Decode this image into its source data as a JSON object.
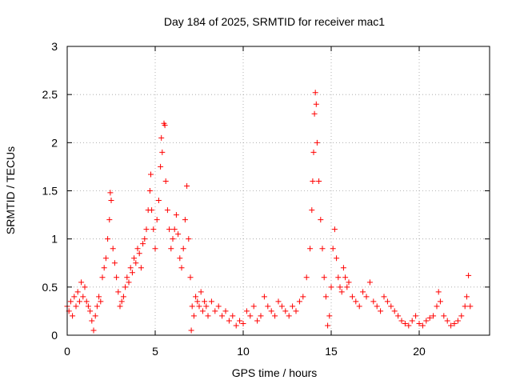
{
  "chart_data": {
    "type": "scatter",
    "title": "Day 184 of 2025, SRMTID for receiver mac1",
    "xlabel": "GPS time / hours",
    "ylabel": "SRMTID / TECUs",
    "xlim": [
      0,
      24
    ],
    "ylim": [
      0,
      3
    ],
    "xticks": [
      0,
      5,
      10,
      15,
      20
    ],
    "xtick_labels": [
      "0",
      "5",
      "10",
      "15",
      "20"
    ],
    "yticks": [
      0,
      0.5,
      1,
      1.5,
      2,
      2.5,
      3
    ],
    "ytick_labels": [
      "0",
      "0.5",
      "1",
      "1.5",
      "2",
      "2.5",
      "3"
    ],
    "grid": true,
    "marker": "+",
    "series": [
      {
        "name": "SRMTID",
        "color": "#ff0000",
        "points": [
          [
            0.0,
            0.3
          ],
          [
            0.1,
            0.25
          ],
          [
            0.2,
            0.35
          ],
          [
            0.3,
            0.2
          ],
          [
            0.4,
            0.4
          ],
          [
            0.5,
            0.3
          ],
          [
            0.6,
            0.45
          ],
          [
            0.7,
            0.35
          ],
          [
            0.8,
            0.55
          ],
          [
            0.9,
            0.4
          ],
          [
            1.0,
            0.5
          ],
          [
            1.1,
            0.35
          ],
          [
            1.2,
            0.3
          ],
          [
            1.3,
            0.25
          ],
          [
            1.4,
            0.15
          ],
          [
            1.5,
            0.05
          ],
          [
            1.6,
            0.2
          ],
          [
            1.7,
            0.3
          ],
          [
            1.8,
            0.4
          ],
          [
            1.9,
            0.35
          ],
          [
            2.0,
            0.6
          ],
          [
            2.1,
            0.7
          ],
          [
            2.2,
            0.8
          ],
          [
            2.3,
            1.0
          ],
          [
            2.4,
            1.2
          ],
          [
            2.45,
            1.48
          ],
          [
            2.5,
            1.4
          ],
          [
            2.6,
            0.9
          ],
          [
            2.7,
            0.75
          ],
          [
            2.8,
            0.6
          ],
          [
            2.9,
            0.45
          ],
          [
            3.0,
            0.3
          ],
          [
            3.1,
            0.35
          ],
          [
            3.2,
            0.4
          ],
          [
            3.3,
            0.5
          ],
          [
            3.4,
            0.6
          ],
          [
            3.5,
            0.55
          ],
          [
            3.6,
            0.7
          ],
          [
            3.7,
            0.65
          ],
          [
            3.8,
            0.8
          ],
          [
            3.9,
            0.75
          ],
          [
            4.0,
            0.9
          ],
          [
            4.1,
            0.85
          ],
          [
            4.2,
            0.7
          ],
          [
            4.3,
            0.95
          ],
          [
            4.4,
            1.0
          ],
          [
            4.5,
            1.1
          ],
          [
            4.6,
            1.3
          ],
          [
            4.7,
            1.5
          ],
          [
            4.75,
            1.67
          ],
          [
            4.8,
            1.3
          ],
          [
            4.9,
            1.1
          ],
          [
            5.0,
            0.9
          ],
          [
            5.1,
            1.2
          ],
          [
            5.2,
            1.4
          ],
          [
            5.3,
            1.75
          ],
          [
            5.35,
            2.05
          ],
          [
            5.4,
            1.9
          ],
          [
            5.5,
            2.2
          ],
          [
            5.55,
            2.18
          ],
          [
            5.6,
            1.6
          ],
          [
            5.7,
            1.3
          ],
          [
            5.8,
            1.1
          ],
          [
            5.9,
            0.9
          ],
          [
            6.0,
            1.0
          ],
          [
            6.1,
            1.1
          ],
          [
            6.2,
            1.25
          ],
          [
            6.3,
            1.05
          ],
          [
            6.4,
            0.8
          ],
          [
            6.5,
            0.7
          ],
          [
            6.6,
            0.9
          ],
          [
            6.7,
            1.2
          ],
          [
            6.8,
            1.55
          ],
          [
            6.9,
            1.0
          ],
          [
            7.0,
            0.6
          ],
          [
            7.05,
            0.05
          ],
          [
            7.1,
            0.3
          ],
          [
            7.2,
            0.2
          ],
          [
            7.3,
            0.4
          ],
          [
            7.4,
            0.35
          ],
          [
            7.5,
            0.3
          ],
          [
            7.6,
            0.45
          ],
          [
            7.7,
            0.25
          ],
          [
            7.8,
            0.35
          ],
          [
            7.9,
            0.3
          ],
          [
            8.0,
            0.2
          ],
          [
            8.2,
            0.35
          ],
          [
            8.4,
            0.25
          ],
          [
            8.6,
            0.3
          ],
          [
            8.8,
            0.2
          ],
          [
            9.0,
            0.25
          ],
          [
            9.2,
            0.15
          ],
          [
            9.4,
            0.2
          ],
          [
            9.6,
            0.1
          ],
          [
            9.8,
            0.15
          ],
          [
            10.0,
            0.12
          ],
          [
            10.2,
            0.25
          ],
          [
            10.4,
            0.2
          ],
          [
            10.6,
            0.3
          ],
          [
            10.8,
            0.15
          ],
          [
            11.0,
            0.2
          ],
          [
            11.2,
            0.4
          ],
          [
            11.4,
            0.3
          ],
          [
            11.6,
            0.25
          ],
          [
            11.8,
            0.2
          ],
          [
            12.0,
            0.35
          ],
          [
            12.2,
            0.3
          ],
          [
            12.4,
            0.25
          ],
          [
            12.6,
            0.2
          ],
          [
            12.8,
            0.3
          ],
          [
            13.0,
            0.25
          ],
          [
            13.2,
            0.35
          ],
          [
            13.4,
            0.4
          ],
          [
            13.6,
            0.6
          ],
          [
            13.8,
            0.9
          ],
          [
            13.9,
            1.3
          ],
          [
            13.95,
            1.6
          ],
          [
            14.0,
            1.9
          ],
          [
            14.05,
            2.3
          ],
          [
            14.1,
            2.52
          ],
          [
            14.15,
            2.4
          ],
          [
            14.2,
            2.0
          ],
          [
            14.3,
            1.6
          ],
          [
            14.4,
            1.2
          ],
          [
            14.5,
            0.9
          ],
          [
            14.6,
            0.6
          ],
          [
            14.7,
            0.4
          ],
          [
            14.8,
            0.1
          ],
          [
            14.9,
            0.2
          ],
          [
            15.0,
            0.5
          ],
          [
            15.1,
            0.9
          ],
          [
            15.2,
            1.1
          ],
          [
            15.3,
            0.8
          ],
          [
            15.4,
            0.6
          ],
          [
            15.5,
            0.5
          ],
          [
            15.6,
            0.45
          ],
          [
            15.7,
            0.7
          ],
          [
            15.8,
            0.6
          ],
          [
            15.9,
            0.5
          ],
          [
            16.0,
            0.55
          ],
          [
            16.2,
            0.4
          ],
          [
            16.4,
            0.35
          ],
          [
            16.6,
            0.3
          ],
          [
            16.8,
            0.45
          ],
          [
            17.0,
            0.4
          ],
          [
            17.2,
            0.55
          ],
          [
            17.4,
            0.35
          ],
          [
            17.6,
            0.3
          ],
          [
            17.8,
            0.25
          ],
          [
            18.0,
            0.4
          ],
          [
            18.2,
            0.35
          ],
          [
            18.4,
            0.3
          ],
          [
            18.6,
            0.25
          ],
          [
            18.8,
            0.2
          ],
          [
            19.0,
            0.15
          ],
          [
            19.2,
            0.12
          ],
          [
            19.4,
            0.1
          ],
          [
            19.6,
            0.15
          ],
          [
            19.8,
            0.2
          ],
          [
            20.0,
            0.12
          ],
          [
            20.2,
            0.1
          ],
          [
            20.4,
            0.15
          ],
          [
            20.6,
            0.18
          ],
          [
            20.8,
            0.2
          ],
          [
            21.0,
            0.3
          ],
          [
            21.1,
            0.45
          ],
          [
            21.2,
            0.35
          ],
          [
            21.4,
            0.2
          ],
          [
            21.6,
            0.15
          ],
          [
            21.8,
            0.1
          ],
          [
            22.0,
            0.12
          ],
          [
            22.2,
            0.15
          ],
          [
            22.4,
            0.2
          ],
          [
            22.6,
            0.3
          ],
          [
            22.7,
            0.4
          ],
          [
            22.8,
            0.62
          ],
          [
            22.9,
            0.3
          ]
        ]
      }
    ]
  }
}
